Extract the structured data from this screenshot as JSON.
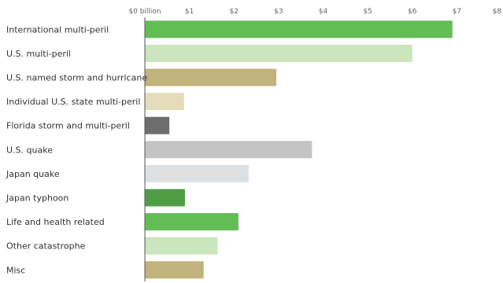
{
  "chart_data": {
    "type": "bar",
    "orientation": "horizontal",
    "title": "",
    "xlabel": "",
    "ylabel": "",
    "xlim": [
      0,
      8
    ],
    "ticks": [
      0,
      1,
      2,
      3,
      4,
      5,
      6,
      7,
      8
    ],
    "tick_labels": [
      "$0 billion",
      "$1",
      "$2",
      "$3",
      "$4",
      "$5",
      "$6",
      "$7",
      "$8"
    ],
    "grid": false,
    "categories": [
      "International multi-peril",
      "U.S. multi-peril",
      "U.S. named storm and hurricane",
      "Individual U.S. state multi-peril",
      "Florida storm and multi-peril",
      "U.S. quake",
      "Japan quake",
      "Japan typhoon",
      "Life and health related",
      "Other catastrophe",
      "Misc"
    ],
    "values": [
      6.9,
      6.0,
      2.95,
      0.88,
      0.55,
      3.75,
      2.33,
      0.9,
      2.1,
      1.63,
      1.32
    ],
    "colors": [
      "#62bd55",
      "#cbe5bd",
      "#c2b27c",
      "#e5dcba",
      "#6e6e6e",
      "#c4c4c4",
      "#dde1e3",
      "#4f9e45",
      "#62bd55",
      "#cbe5bd",
      "#c2b27c"
    ]
  }
}
